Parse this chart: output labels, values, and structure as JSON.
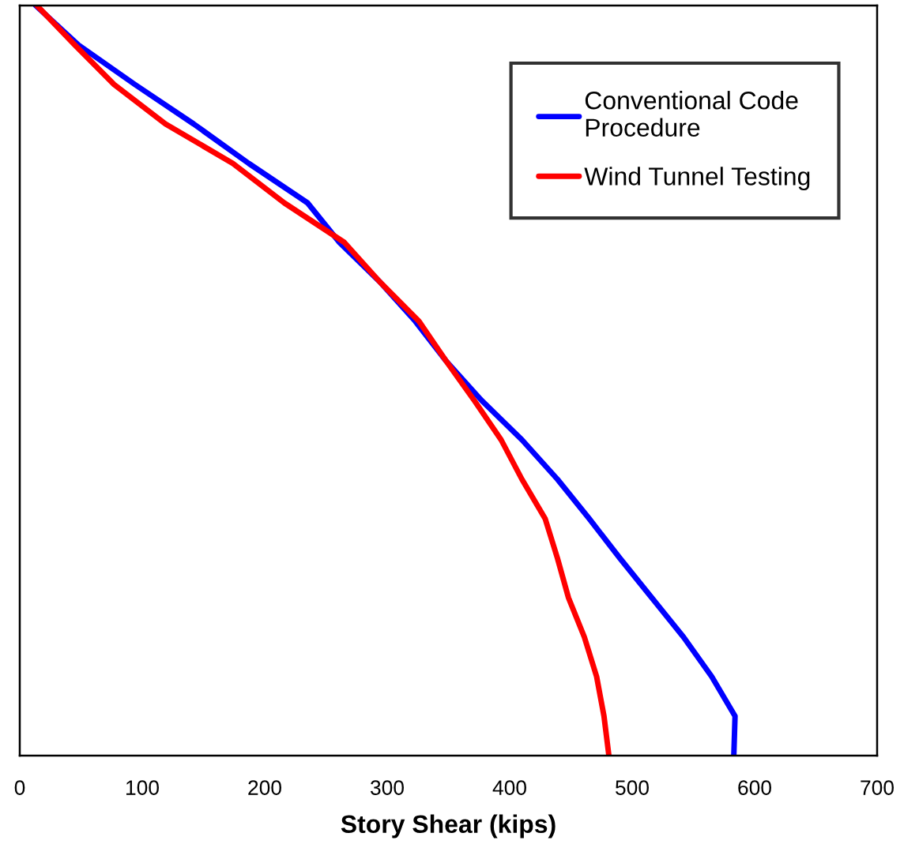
{
  "chart_data": {
    "type": "line",
    "orientation": "horizontal",
    "xlabel": "Story Shear (kips)",
    "categories": [
      null,
      null,
      null,
      null,
      null,
      null,
      null,
      null,
      null,
      null,
      null,
      null,
      null,
      null,
      null,
      null,
      null,
      null,
      null,
      null
    ],
    "series": [
      {
        "name": "Conventional Code Procedure",
        "color": "#0000ff",
        "values": [
          13,
          48,
          94,
          142,
          187,
          235,
          261,
          294,
          323,
          348,
          377,
          410,
          439,
          465,
          490,
          516,
          542,
          565,
          584,
          583
        ]
      },
      {
        "name": "Wind Tunnel Testing",
        "color": "#ff0000",
        "values": [
          14,
          45,
          77,
          119,
          174,
          216,
          265,
          294,
          326,
          348,
          371,
          393,
          410,
          429,
          439,
          448,
          461,
          471,
          477,
          481
        ]
      }
    ],
    "xlim": [
      0,
      700
    ],
    "xticks": [
      0,
      100,
      200,
      300,
      400,
      500,
      600,
      700
    ],
    "tick_labels": "x",
    "grid": false,
    "legend": "top right",
    "marker": "none",
    "line_style": "solid"
  }
}
